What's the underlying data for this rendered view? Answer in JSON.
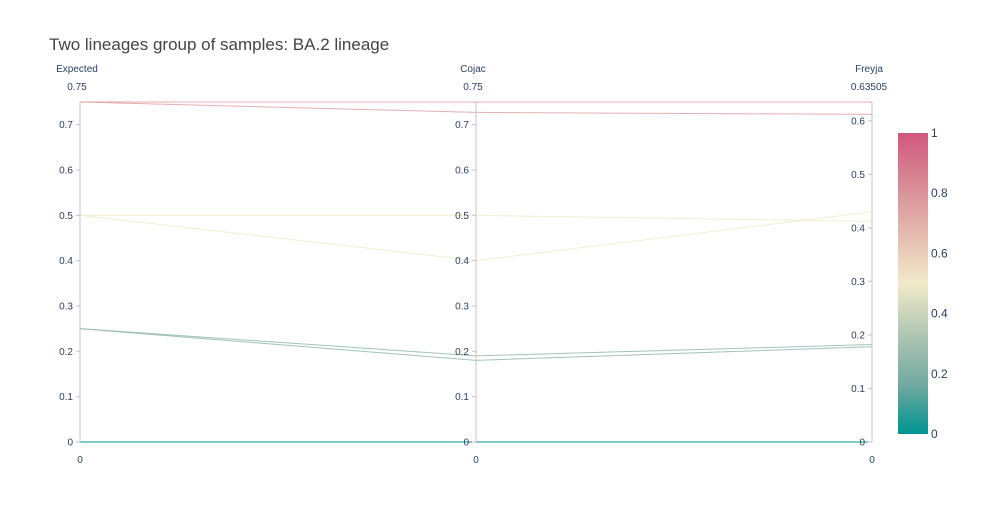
{
  "chart_data": {
    "type": "parallel_coordinates",
    "title": "Two lineages group of samples: BA.2 lineage",
    "dimensions": [
      {
        "label": "Expected",
        "range": [
          0,
          0.75
        ],
        "range_labels": {
          "top": "0.75",
          "bottom": "0"
        },
        "ticks": [
          "0",
          "0.1",
          "0.2",
          "0.3",
          "0.4",
          "0.5",
          "0.6",
          "0.7"
        ],
        "tick_values": [
          0,
          0.1,
          0.2,
          0.3,
          0.4,
          0.5,
          0.6,
          0.7
        ]
      },
      {
        "label": "Cojac",
        "range": [
          0,
          0.75
        ],
        "range_labels": {
          "top": "0.75",
          "bottom": "0"
        },
        "ticks": [
          "0",
          "0.1",
          "0.2",
          "0.3",
          "0.4",
          "0.5",
          "0.6",
          "0.7"
        ],
        "tick_values": [
          0,
          0.1,
          0.2,
          0.3,
          0.4,
          0.5,
          0.6,
          0.7
        ]
      },
      {
        "label": "Freyja",
        "range": [
          0,
          0.63505
        ],
        "range_labels": {
          "top": "0.63505",
          "bottom": "0"
        },
        "ticks": [
          "0",
          "0.1",
          "0.2",
          "0.3",
          "0.4",
          "0.5",
          "0.6"
        ],
        "tick_values": [
          0,
          0.1,
          0.2,
          0.3,
          0.4,
          0.5,
          0.6
        ]
      }
    ],
    "lines": [
      {
        "values": [
          0.75,
          0.75,
          0.635
        ],
        "color_value": 0.75
      },
      {
        "values": [
          0.75,
          0.727,
          0.612
        ],
        "color_value": 0.75
      },
      {
        "values": [
          0.5,
          0.5,
          0.412
        ],
        "color_value": 0.5
      },
      {
        "values": [
          0.5,
          0.4,
          0.43
        ],
        "color_value": 0.5
      },
      {
        "values": [
          0.25,
          0.19,
          0.182
        ],
        "color_value": 0.25
      },
      {
        "values": [
          0.25,
          0.18,
          0.178
        ],
        "color_value": 0.25
      },
      {
        "values": [
          0,
          0,
          0
        ],
        "color_value": 0
      },
      {
        "values": [
          0,
          0,
          0
        ],
        "color_value": 0
      }
    ],
    "colorbar": {
      "range": [
        0,
        1
      ],
      "ticks": [
        "0",
        "0.2",
        "0.4",
        "0.6",
        "0.8",
        "1"
      ],
      "tick_values": [
        0,
        0.2,
        0.4,
        0.6,
        0.8,
        1
      ],
      "colorscale": [
        "#009392",
        "#72aaa1",
        "#b1c7b3",
        "#f1eac8",
        "#e5b9ad",
        "#d98994",
        "#d0587e"
      ]
    }
  }
}
